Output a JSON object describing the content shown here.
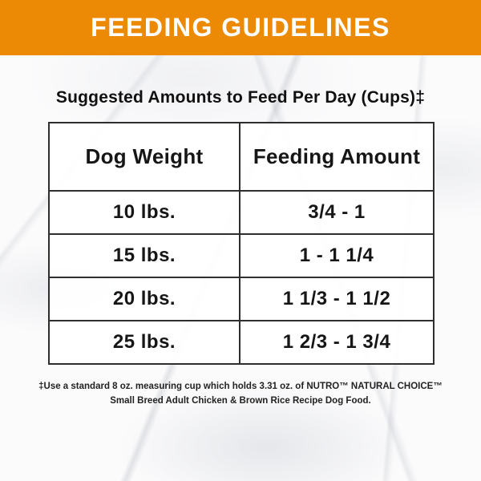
{
  "banner": {
    "title": "FEEDING GUIDELINES",
    "background_color": "#ED8A05",
    "text_color": "#FFFFFF"
  },
  "section": {
    "title": "Suggested Amounts to Feed Per Day (Cups)‡"
  },
  "table": {
    "columns": [
      "Dog Weight",
      "Feeding Amount"
    ],
    "rows": [
      {
        "weight": "10 lbs.",
        "amount": "3/4 - 1"
      },
      {
        "weight": "15 lbs.",
        "amount": "1 - 1 1/4"
      },
      {
        "weight": "20 lbs.",
        "amount": "1 1/3 - 1 1/2"
      },
      {
        "weight": "25 lbs.",
        "amount": "1 2/3 - 1 3/4"
      }
    ]
  },
  "footnote": {
    "line1": "‡Use a standard 8 oz. measuring cup which holds 3.31 oz. of NUTRO™ NATURAL CHOICE™",
    "line2": "Small Breed Adult Chicken & Brown Rice Recipe Dog Food."
  },
  "colors": {
    "accent_orange": "#ED8A05",
    "text_black": "#1C1C1C",
    "table_border": "#2E2E2E",
    "background_marble": "#FBFBFC"
  }
}
